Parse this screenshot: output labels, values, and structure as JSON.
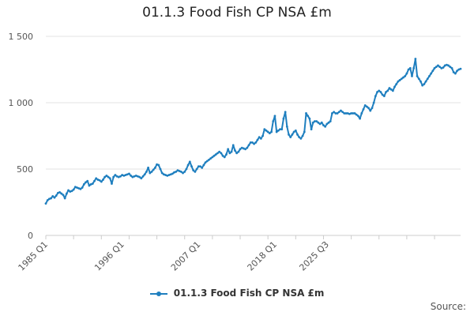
{
  "chart_data": {
    "type": "line",
    "title": "01.1.3 Food Fish CP NSA £m",
    "xlabel": "",
    "ylabel": "",
    "ylim": [
      0,
      1500
    ],
    "yticks": [
      0,
      500,
      1000,
      1500
    ],
    "ytick_labels": [
      "0",
      "500",
      "1 000",
      "1 500"
    ],
    "xtick_labels": [
      "1985 Q1",
      "1996 Q1",
      "2007 Q1",
      "2018 Q1",
      "2025 Q3"
    ],
    "grid": true,
    "legend_position": "bottom",
    "line_color": "#1f7fbf",
    "source_label": "Source:",
    "series": [
      {
        "name": "01.1.3 Food Fish CP NSA £m",
        "start": "1985 Q1",
        "end": "2025 Q3",
        "values": [
          240,
          265,
          275,
          280,
          295,
          285,
          300,
          320,
          325,
          315,
          305,
          280,
          315,
          340,
          330,
          335,
          345,
          365,
          360,
          355,
          350,
          360,
          385,
          400,
          410,
          375,
          385,
          390,
          410,
          430,
          420,
          415,
          405,
          420,
          440,
          450,
          440,
          430,
          390,
          440,
          455,
          445,
          440,
          445,
          455,
          450,
          455,
          460,
          465,
          450,
          440,
          445,
          450,
          445,
          440,
          430,
          445,
          460,
          480,
          510,
          470,
          480,
          495,
          510,
          535,
          530,
          500,
          470,
          460,
          455,
          450,
          455,
          460,
          465,
          475,
          480,
          490,
          485,
          480,
          470,
          480,
          500,
          530,
          555,
          520,
          490,
          480,
          500,
          520,
          520,
          510,
          530,
          550,
          560,
          570,
          580,
          590,
          600,
          610,
          620,
          630,
          620,
          600,
          590,
          610,
          650,
          620,
          630,
          680,
          640,
          620,
          630,
          650,
          660,
          655,
          650,
          660,
          680,
          700,
          700,
          690,
          700,
          720,
          740,
          730,
          750,
          800,
          790,
          780,
          770,
          780,
          860,
          900,
          780,
          790,
          800,
          800,
          880,
          930,
          820,
          760,
          740,
          760,
          780,
          790,
          760,
          740,
          730,
          750,
          780,
          920,
          900,
          880,
          800,
          850,
          860,
          860,
          850,
          840,
          850,
          830,
          820,
          840,
          850,
          860,
          920,
          930,
          920,
          920,
          930,
          940,
          930,
          920,
          920,
          920,
          915,
          920,
          920,
          920,
          910,
          900,
          880,
          920,
          950,
          980,
          970,
          960,
          940,
          960,
          1000,
          1050,
          1080,
          1090,
          1080,
          1060,
          1050,
          1080,
          1090,
          1110,
          1100,
          1090,
          1120,
          1140,
          1160,
          1170,
          1180,
          1190,
          1200,
          1220,
          1250,
          1260,
          1200,
          1260,
          1330,
          1200,
          1180,
          1160,
          1130,
          1140,
          1160,
          1180,
          1200,
          1220,
          1240,
          1260,
          1270,
          1280,
          1270,
          1260,
          1265,
          1280,
          1285,
          1280,
          1270,
          1260,
          1230,
          1220,
          1240,
          1250,
          1255
        ]
      }
    ]
  }
}
